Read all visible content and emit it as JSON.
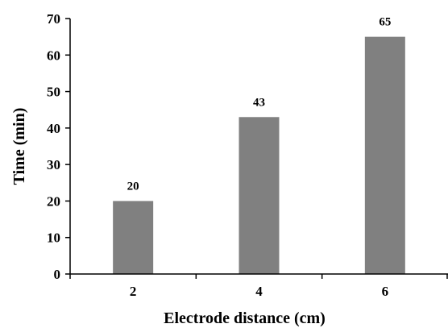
{
  "chart_data": {
    "type": "bar",
    "categories": [
      "2",
      "4",
      "6"
    ],
    "values": [
      20,
      43,
      65
    ],
    "data_labels": [
      "20",
      "43",
      "65"
    ],
    "xlabel": "Electrode distance (cm)",
    "ylabel": "Time (min)",
    "ylim": [
      0,
      70
    ],
    "yticks": [
      0,
      10,
      20,
      30,
      40,
      50,
      60,
      70
    ],
    "grid": false,
    "legend": "none",
    "bar_color": "#808080"
  }
}
